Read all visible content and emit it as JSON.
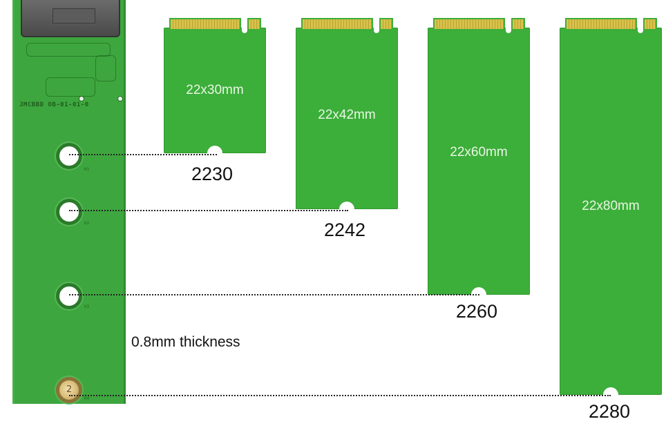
{
  "thickness_label": "0.8mm thickness",
  "board": {
    "silkscreen": "JMCBBD OB-01-01-0",
    "hole_tags": [
      "H1",
      "H2",
      "H3",
      "H4"
    ],
    "standoff_mark": "2"
  },
  "cards": [
    {
      "dimensions": "22x30mm",
      "code": "2230"
    },
    {
      "dimensions": "22x42mm",
      "code": "2242"
    },
    {
      "dimensions": "22x60mm",
      "code": "2260"
    },
    {
      "dimensions": "22x80mm",
      "code": "2280"
    }
  ],
  "colors": {
    "pcb_green": "#3ea63e",
    "card_green": "#3cae3a",
    "gold_contacts": "#d8c24a",
    "standoff_brass": "#d9bd7a"
  }
}
